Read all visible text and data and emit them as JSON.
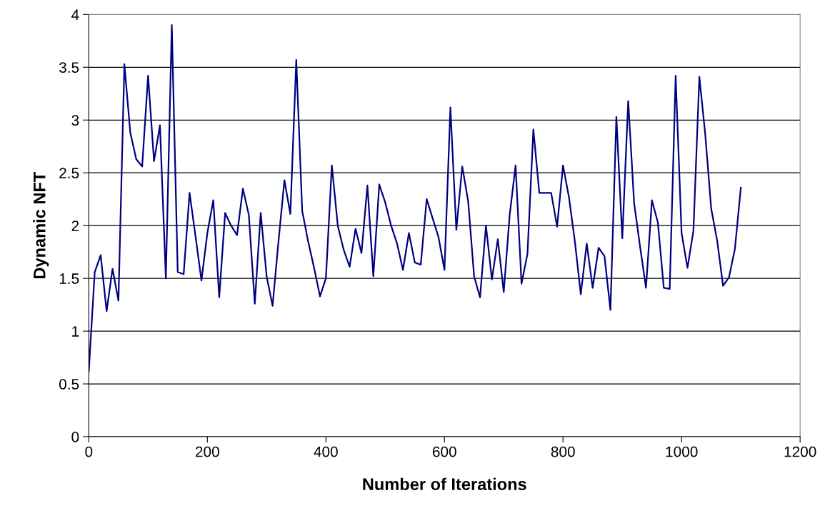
{
  "chart_data": {
    "type": "line",
    "xlabel": "Number of Iterations",
    "ylabel": "Dynamic NFT",
    "x": [
      0,
      10,
      20,
      30,
      40,
      50,
      60,
      70,
      80,
      90,
      100,
      110,
      120,
      130,
      140,
      150,
      160,
      170,
      180,
      190,
      200,
      210,
      220,
      230,
      240,
      250,
      260,
      270,
      280,
      290,
      300,
      310,
      320,
      330,
      340,
      350,
      360,
      370,
      380,
      390,
      400,
      410,
      420,
      430,
      440,
      450,
      460,
      470,
      480,
      490,
      500,
      510,
      520,
      530,
      540,
      550,
      560,
      570,
      580,
      590,
      600,
      610,
      620,
      630,
      640,
      650,
      660,
      670,
      680,
      690,
      700,
      710,
      720,
      730,
      740,
      750,
      760,
      770,
      780,
      790,
      800,
      810,
      820,
      830,
      840,
      850,
      860,
      870,
      880,
      890,
      900,
      910,
      920,
      930,
      940,
      950,
      960,
      970,
      980,
      990,
      1000,
      1010,
      1020,
      1030,
      1040,
      1050,
      1060,
      1070,
      1080,
      1090,
      1100
    ],
    "series": [
      {
        "color": "#000080",
        "values": [
          0.62,
          1.56,
          1.72,
          1.19,
          1.59,
          1.29,
          3.53,
          2.88,
          2.63,
          2.56,
          3.42,
          2.61,
          2.95,
          1.5,
          3.9,
          1.56,
          1.54,
          2.31,
          1.9,
          1.48,
          1.93,
          2.24,
          1.32,
          2.12,
          2.0,
          1.91,
          2.35,
          2.1,
          1.26,
          2.12,
          1.52,
          1.24,
          1.85,
          2.43,
          2.11,
          3.57,
          2.14,
          1.85,
          1.6,
          1.33,
          1.5,
          2.57,
          2.0,
          1.77,
          1.61,
          1.97,
          1.74,
          2.38,
          1.52,
          2.39,
          2.22,
          2.0,
          1.83,
          1.58,
          1.93,
          1.65,
          1.63,
          2.25,
          2.07,
          1.89,
          1.58,
          3.12,
          1.96,
          2.56,
          2.23,
          1.52,
          1.32,
          2.0,
          1.49,
          1.87,
          1.37,
          2.1,
          2.57,
          1.45,
          1.73,
          2.91,
          2.31,
          2.31,
          2.31,
          1.99,
          2.57,
          2.27,
          1.85,
          1.35,
          1.83,
          1.41,
          1.79,
          1.71,
          1.2,
          3.03,
          1.88,
          3.18,
          2.21,
          1.8,
          1.41,
          2.24,
          2.03,
          1.41,
          1.4,
          3.42,
          1.93,
          1.6,
          1.95,
          3.41,
          2.86,
          2.16,
          1.86,
          1.43,
          1.51,
          1.78,
          2.36
        ]
      }
    ],
    "xlim": [
      0,
      1200
    ],
    "xticks": [
      0,
      200,
      400,
      600,
      800,
      1000,
      1200
    ],
    "ylim": [
      0,
      4
    ],
    "yticks": [
      0,
      0.5,
      1,
      1.5,
      2,
      2.5,
      3,
      3.5,
      4
    ],
    "grid": "y",
    "marker": "none",
    "line_style": "solid"
  }
}
